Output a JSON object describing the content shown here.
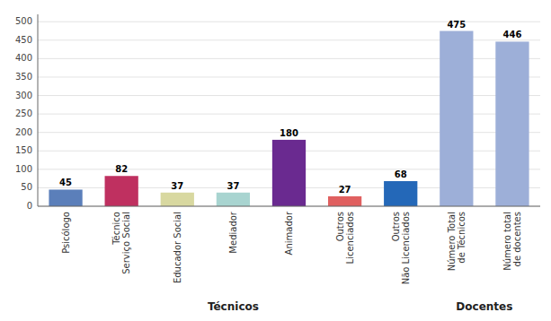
{
  "chart_data": {
    "type": "bar",
    "categories": [
      "Psicólogo",
      "Técnico\nServiço Social",
      "Educador Social",
      "Mediador",
      "Animador",
      "Outros\nLicenciados",
      "Outros\nNão Licenciados",
      "Número Total\nde Técnicos",
      "Número total\nde docentes"
    ],
    "values": [
      45,
      82,
      37,
      37,
      180,
      27,
      68,
      475,
      446
    ],
    "colors": [
      "#5b7fba",
      "#bf3060",
      "#d8d8a0",
      "#a8d4d0",
      "#6a2a90",
      "#e06060",
      "#2468b8",
      "#9dafd8",
      "#9dafd8"
    ],
    "ylim": [
      0,
      520
    ],
    "yticks": [
      0,
      50,
      100,
      150,
      200,
      250,
      300,
      350,
      400,
      450,
      500
    ],
    "grid": true,
    "data_labels": true,
    "groups": [
      {
        "label": "Técnicos",
        "size": 7
      },
      {
        "label": "Docentes",
        "size": 2
      }
    ]
  }
}
